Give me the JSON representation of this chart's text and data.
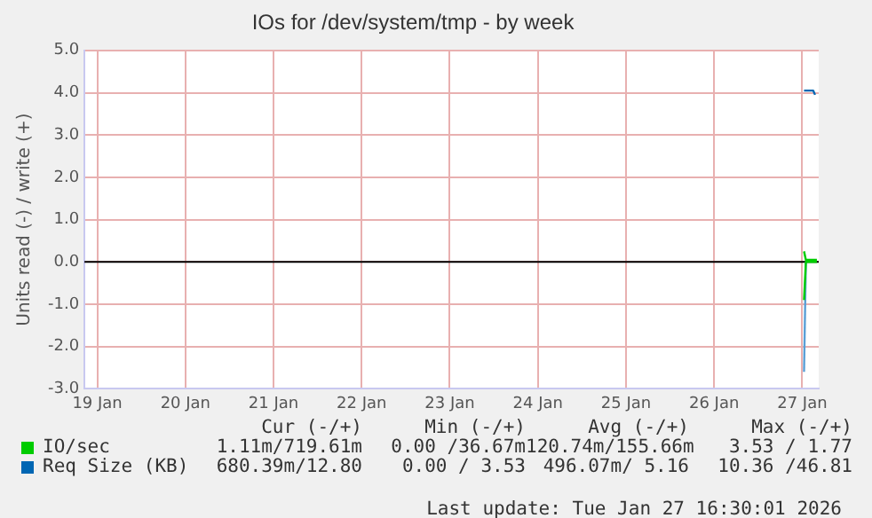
{
  "chart_data": {
    "type": "line",
    "title": "IOs for /dev/system/tmp - by week",
    "ylabel": "Units read (-) / write (+)",
    "xlim": [
      "2026-01-19T08:30",
      "2026-01-27T16:30"
    ],
    "xticks": [
      {
        "value": "2026-01-19T12:00",
        "label": "19 Jan"
      },
      {
        "value": "2026-01-20T12:00",
        "label": "20 Jan"
      },
      {
        "value": "2026-01-21T12:00",
        "label": "21 Jan"
      },
      {
        "value": "2026-01-22T12:00",
        "label": "22 Jan"
      },
      {
        "value": "2026-01-23T12:00",
        "label": "23 Jan"
      },
      {
        "value": "2026-01-24T12:00",
        "label": "24 Jan"
      },
      {
        "value": "2026-01-25T12:00",
        "label": "25 Jan"
      },
      {
        "value": "2026-01-26T12:00",
        "label": "26 Jan"
      },
      {
        "value": "2026-01-27T12:00",
        "label": "27 Jan"
      }
    ],
    "ylim": [
      -3,
      5
    ],
    "yticks": [
      {
        "value": -3,
        "label": "-3.0"
      },
      {
        "value": -2,
        "label": "-2.0"
      },
      {
        "value": -1,
        "label": "-1.0"
      },
      {
        "value": 0,
        "label": "0.0"
      },
      {
        "value": 1,
        "label": "1.0"
      },
      {
        "value": 2,
        "label": "2.0"
      },
      {
        "value": 3,
        "label": "3.0"
      },
      {
        "value": 4,
        "label": "4.0"
      },
      {
        "value": 5,
        "label": "5.0"
      }
    ],
    "grid": true,
    "legend": "bottom",
    "marker": "none",
    "ref_lines": [
      {
        "axis": "y",
        "value": 0,
        "color": "#000000"
      }
    ],
    "series": [
      {
        "name": "IO/sec",
        "color": "#00cc00",
        "x": [
          "2026-01-27T12:30",
          "2026-01-27T13:00",
          "2026-01-27T16:00"
        ],
        "values": [
          0.25,
          0.05,
          0.05
        ]
      },
      {
        "color": "#00cc00",
        "x": [
          "2026-01-27T12:30",
          "2026-01-27T13:00",
          "2026-01-27T16:00"
        ],
        "values": [
          -0.9,
          0,
          0
        ]
      },
      {
        "name": "Req Size (KB)",
        "color": "#0066b3",
        "x": [
          "2026-01-27T12:30",
          "2026-01-27T15:00",
          "2026-01-27T15:30"
        ],
        "values": [
          4.05,
          4.05,
          3.95
        ]
      },
      {
        "color": "#5a9fd6",
        "x": [
          "2026-01-27T12:30",
          "2026-01-27T13:00"
        ],
        "values": [
          -2.6,
          0
        ]
      }
    ],
    "annotations": [
      "Cur (-/+)",
      "Min (-/+)",
      "Avg (-/+)",
      "Max (-/+)",
      "1.11m/719.61m",
      "0.00 /36.67m",
      "120.74m/155.66m",
      "3.53 / 1.77",
      "680.39m/12.80",
      "0.00 / 3.53",
      "496.07m/ 5.16",
      "10.36 /46.81",
      "Last update: Tue Jan 27 16:30:01 2026"
    ]
  }
}
